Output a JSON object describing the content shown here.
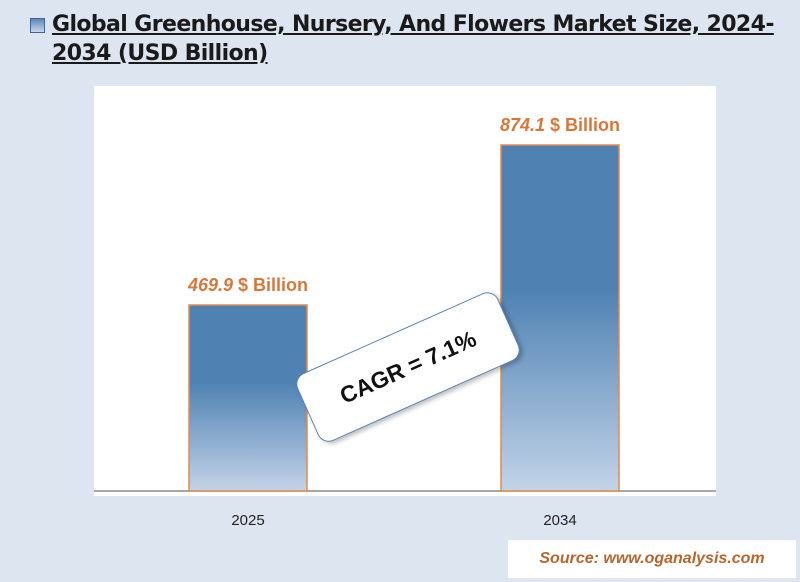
{
  "title": "Global Greenhouse, Nursery, And Flowers Market Size, 2024-2034 (USD Billion)",
  "source": "Source: www.oganalysis.com",
  "cagr_label": "CAGR = 7.1%",
  "value_suffix": " $ Billion",
  "colors": {
    "bar_top": "#4f82b3",
    "bar_bottom": "#c3d3e8",
    "bar_border": "#e8884a",
    "value_label": "#d9773a",
    "source_text": "#b8652c"
  },
  "chart_data": {
    "type": "bar",
    "title": "Global Greenhouse, Nursery, And Flowers Market Size, 2024-2034 (USD Billion)",
    "categories": [
      "2025",
      "2034"
    ],
    "values": [
      469.9,
      874.1
    ],
    "value_labels": [
      "469.9",
      "874.1"
    ],
    "xlabel": "",
    "ylabel": "",
    "ylim": [
      0,
      1000
    ],
    "grid": false,
    "annotations": [
      "CAGR = 7.1%"
    ]
  }
}
